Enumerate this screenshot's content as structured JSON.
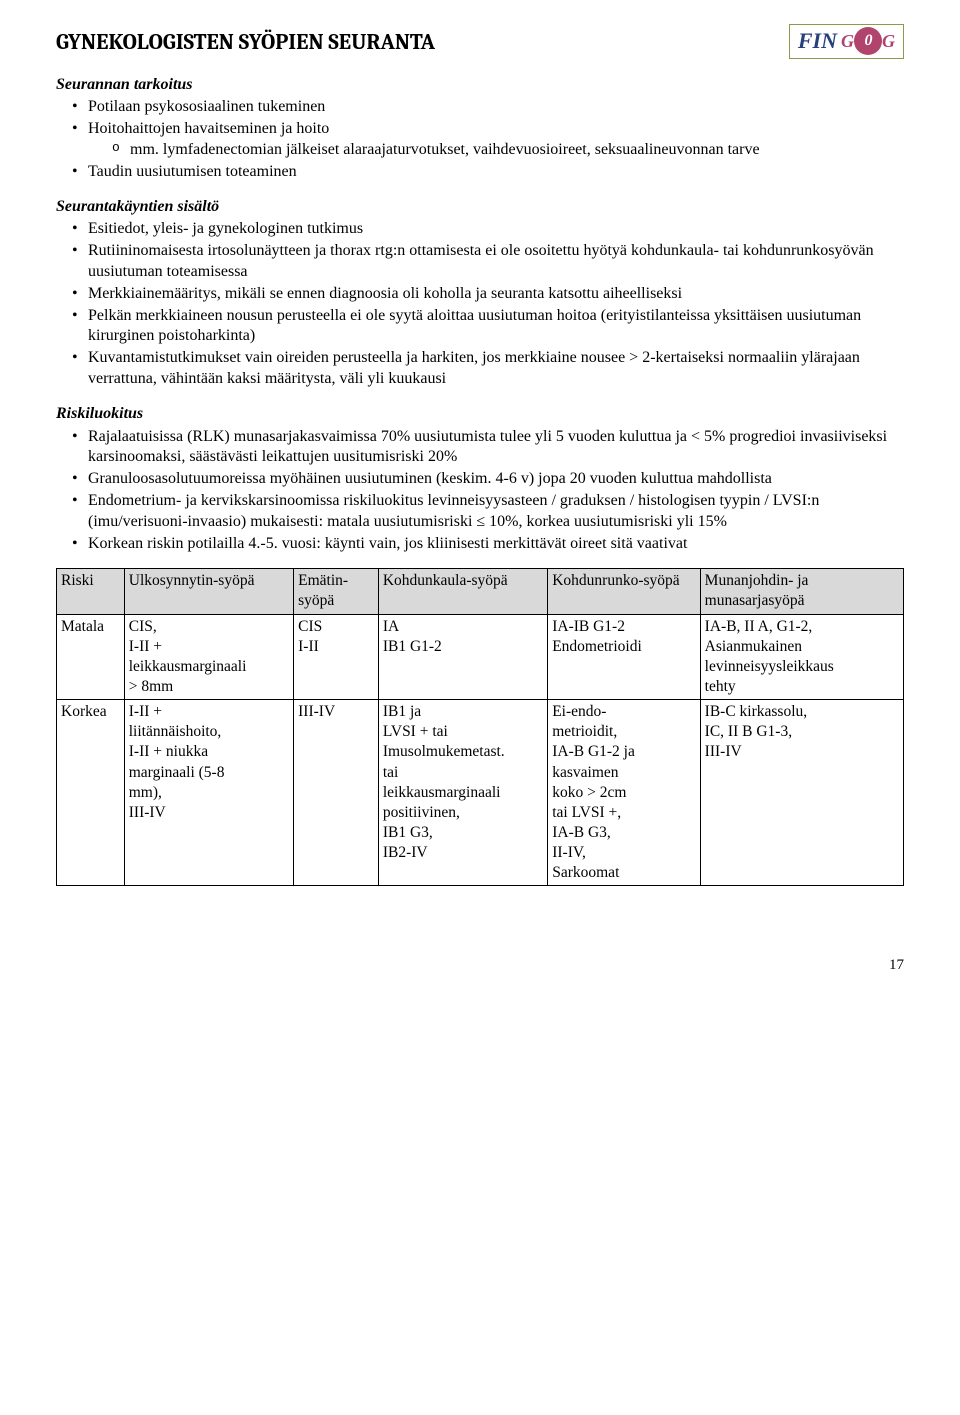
{
  "logo": {
    "fin": "FIN",
    "g_left": "G",
    "g_mid": "0",
    "g_right": "G"
  },
  "title": "GYNEKOLOGISTEN SYÖPIEN SEURANTA",
  "sect1": {
    "title": "Seurannan tarkoitus",
    "b1": "Potilaan psykososiaalinen tukeminen",
    "b2": "Hoitohaittojen havaitseminen ja hoito",
    "b2s1": "mm. lymfadenectomian jälkeiset alaraajaturvotukset, vaihdevuosioireet, seksuaalineuvonnan tarve",
    "b3": "Taudin uusiutumisen toteaminen"
  },
  "sect2": {
    "title": "Seurantakäyntien sisältö",
    "b1": "Esitiedot, yleis- ja gynekologinen tutkimus",
    "b2": "Rutiininomaisesta irtosolunäytteen ja thorax rtg:n ottamisesta ei ole osoitettu hyötyä kohdunkaula- tai kohdunrunkosyövän uusiutuman toteamisessa",
    "b3": "Merkkiainemääritys, mikäli se ennen diagnoosia oli koholla ja seuranta katsottu aiheelliseksi",
    "b4": "Pelkän merkkiaineen nousun perusteella ei ole syytä aloittaa uusiutuman hoitoa (erityistilanteissa yksittäisen uusiutuman kirurginen poistoharkinta)",
    "b5": "Kuvantamistutkimukset vain oireiden perusteella ja harkiten, jos merkkiaine nousee > 2-kertaiseksi normaaliin ylärajaan verrattuna, vähintään kaksi määritysta, väli yli kuukausi"
  },
  "sect3": {
    "title": "Riskiluokitus",
    "b1": "Rajalaatuisissa (RLK) munasarjakasvaimissa 70% uusiutumista tulee yli 5 vuoden kuluttua ja < 5% progredioi invasiiviseksi karsinoomaksi, säästävästi leikattujen uusitumisriski 20%",
    "b2": "Granuloosasolutuumoreissa myöhäinen uusiutuminen (keskim. 4-6 v) jopa 20 vuoden kuluttua mahdollista",
    "b3": "Endometrium- ja kervikskarsinoomissa riskiluokitus levinneisyysasteen / graduksen / histologisen tyypin / LVSI:n (imu/verisuoni-invaasio) mukaisesti: matala uusiutumisriski ≤ 10%, korkea uusiutumisriski yli 15%",
    "b4": "Korkean riskin potilailla 4.-5. vuosi: käynti vain, jos kliinisesti merkittävät oireet sitä vaativat"
  },
  "table": {
    "headers": [
      "Riski",
      "Ulkosynnytin-syöpä",
      "Emätin-syöpä",
      "Kohdunkaula-syöpä",
      "Kohdunrunko-syöpä",
      "Munanjohdin- ja munasarjasyöpä"
    ],
    "rows": [
      [
        "Matala",
        "CIS,\nI-II +\nleikkausmarginaali\n> 8mm",
        "CIS\nI-II",
        "IA\nIB1 G1-2",
        "IA-IB G1-2\nEndometrioidi",
        "IA-B, II A, G1-2,\nAsianmukainen\nlevinneisyysleikkaus\ntehty"
      ],
      [
        "Korkea",
        "I-II +\nliitännäishoito,\nI-II + niukka\nmarginaali (5-8\nmm),\nIII-IV",
        "III-IV",
        "IB1 ja\nLVSI + tai\nImusolmukemetast.\ntai\nleikkausmarginaali\npositiivinen,\nIB1 G3,\nIB2-IV",
        "Ei-endo-\nmetrioidit,\nIA-B G1-2 ja\nkasvaimen\nkoko > 2cm\ntai LVSI +,\nIA-B G3,\nII-IV,\nSarkoomat",
        "IB-C kirkassolu,\nIC, II B G1-3,\nIII-IV"
      ]
    ]
  },
  "page": "17"
}
